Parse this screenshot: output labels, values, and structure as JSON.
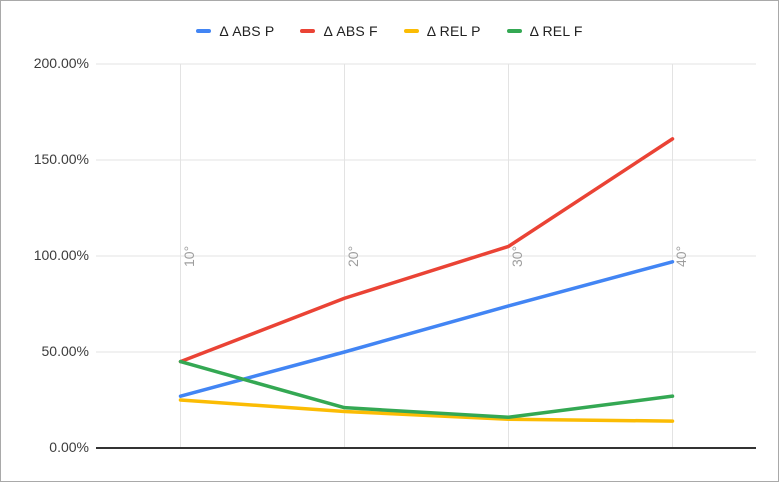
{
  "chart_data": {
    "type": "line",
    "title": "",
    "xlabel": "",
    "ylabel": "",
    "categories": [
      "10°",
      "20°",
      "30°",
      "40°"
    ],
    "series": [
      {
        "key": "abs-p",
        "name": "Δ ABS P",
        "color": "#4285F4",
        "values": [
          27,
          50,
          74,
          97
        ]
      },
      {
        "key": "abs-f",
        "name": "Δ ABS F",
        "color": "#EA4335",
        "values": [
          45,
          78,
          105,
          161
        ]
      },
      {
        "key": "rel-p",
        "name": "Δ REL P",
        "color": "#FBBC04",
        "values": [
          25,
          19,
          15,
          14
        ]
      },
      {
        "key": "rel-f",
        "name": "Δ REL F",
        "color": "#34A853",
        "values": [
          45,
          21,
          16,
          27
        ]
      }
    ],
    "ylim": [
      0,
      200
    ],
    "y_ticks": [
      {
        "value": 0,
        "label": "0.00%"
      },
      {
        "value": 50,
        "label": "50.00%"
      },
      {
        "value": 100,
        "label": "100.00%"
      },
      {
        "value": 150,
        "label": "150.00%"
      },
      {
        "value": 200,
        "label": "200.00%"
      }
    ],
    "legend_position": "top",
    "grid": true
  },
  "colors": {
    "background": "#ffffff",
    "frame_border": "#a9a9a9",
    "gridline": "#e3e3e3",
    "axis_baseline": "#333333",
    "y_label_text": "#3c3c3c",
    "x_label_text": "#9e9e9e",
    "legend_text": "#212121"
  }
}
